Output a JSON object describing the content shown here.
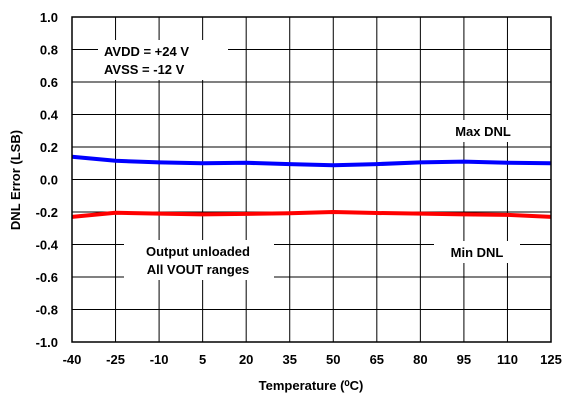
{
  "chart_data": {
    "type": "line",
    "title": "",
    "xlabel": "Temperature (⁰C)",
    "ylabel": "DNL Error (LSB)",
    "xlim": [
      -40,
      125
    ],
    "ylim": [
      -1.0,
      1.0
    ],
    "x_ticks": [
      "-40",
      "-25",
      "-10",
      "5",
      "20",
      "35",
      "50",
      "65",
      "80",
      "95",
      "110",
      "125"
    ],
    "y_ticks": [
      "1.0",
      "0.8",
      "0.6",
      "0.4",
      "0.2",
      "0.0",
      "-0.2",
      "-0.4",
      "-0.6",
      "-0.8",
      "-1.0"
    ],
    "grid": true,
    "series": [
      {
        "name": "Max DNL",
        "color": "#0000ff",
        "x": [
          -40,
          -25,
          -10,
          5,
          20,
          35,
          50,
          65,
          80,
          95,
          110,
          125
        ],
        "y": [
          0.14,
          0.115,
          0.105,
          0.1,
          0.103,
          0.095,
          0.088,
          0.095,
          0.105,
          0.11,
          0.103,
          0.1
        ]
      },
      {
        "name": "Min DNL",
        "color": "#ff0000",
        "x": [
          -40,
          -25,
          -10,
          5,
          20,
          35,
          50,
          65,
          80,
          95,
          110,
          125
        ],
        "y": [
          -0.23,
          -0.205,
          -0.21,
          -0.215,
          -0.212,
          -0.208,
          -0.2,
          -0.206,
          -0.21,
          -0.215,
          -0.218,
          -0.23
        ]
      }
    ],
    "annotations": {
      "supply_line1": "AVDD = +24 V",
      "supply_line2": "AVSS = -12 V",
      "condition_line1": "Output unloaded",
      "condition_line2": "All VOUT ranges"
    }
  }
}
